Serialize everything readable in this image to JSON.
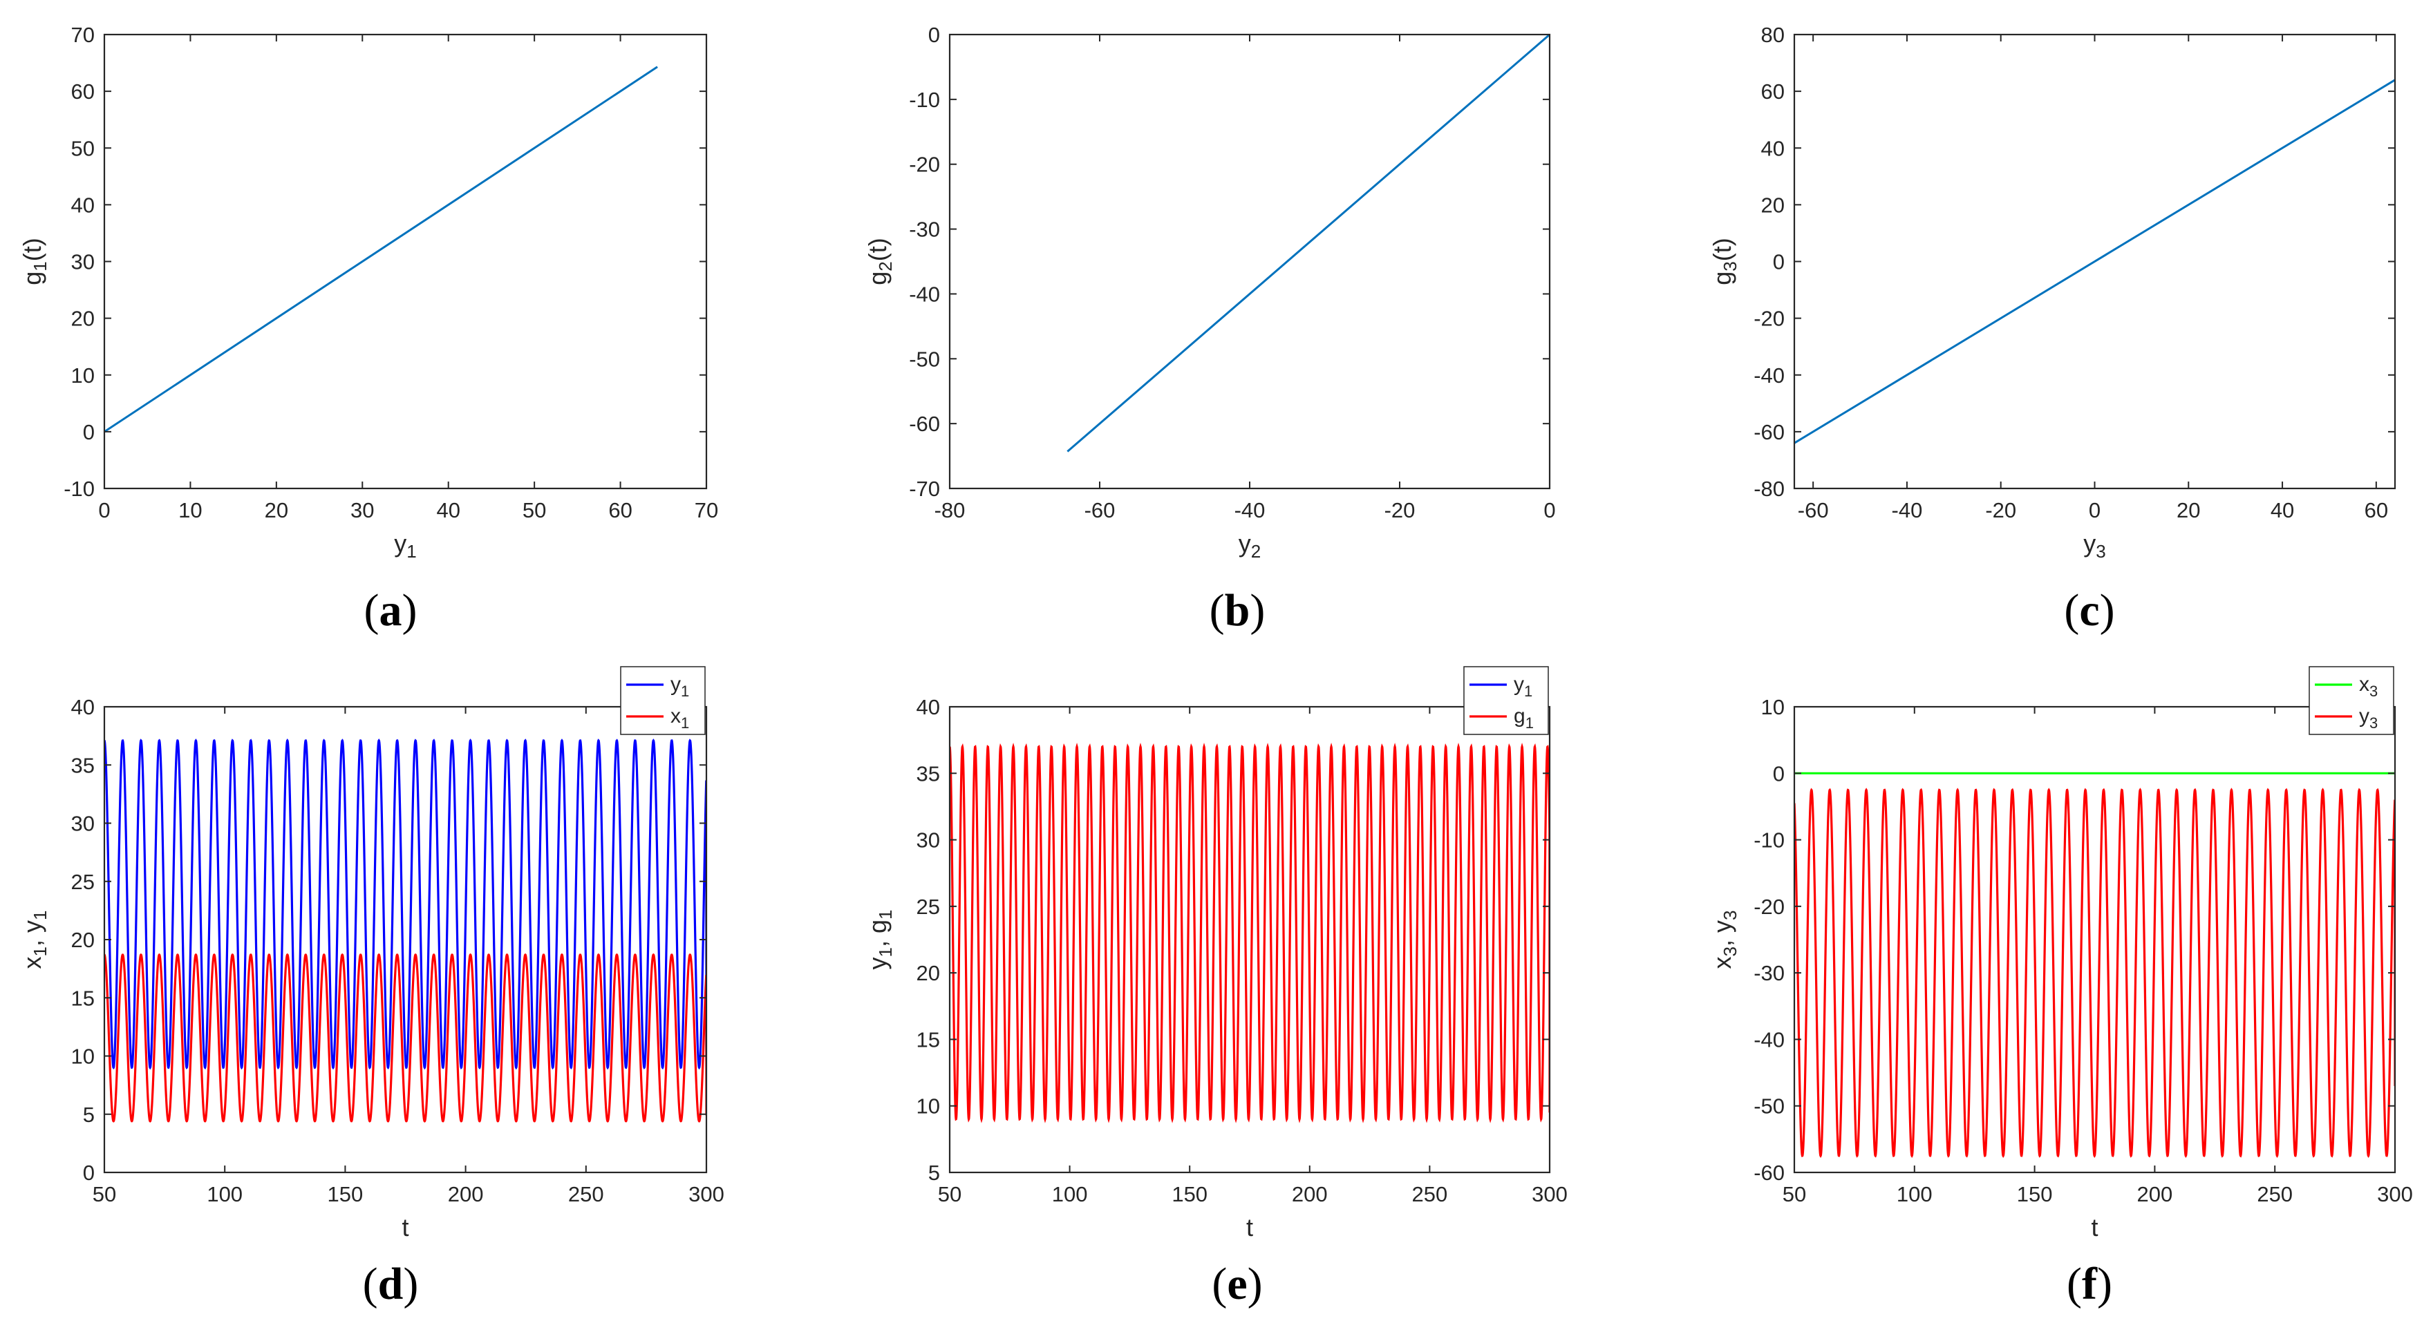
{
  "figure": {
    "background": "#ffffff"
  },
  "chart_data": [
    {
      "id": "a",
      "panel_label": "a",
      "type": "line",
      "xlabel": {
        "base": "y",
        "sub": "1",
        "rest": ""
      },
      "ylabel": {
        "base": "g",
        "sub": "1",
        "rest": "(t)"
      },
      "xlim": [
        0,
        70
      ],
      "ylim": [
        -10,
        70
      ],
      "xticks": [
        0,
        10,
        20,
        30,
        40,
        50,
        60,
        70
      ],
      "yticks": [
        -10,
        0,
        10,
        20,
        30,
        40,
        50,
        60,
        70
      ],
      "series": [
        {
          "name": "g1 vs y1",
          "color": "#0072BD",
          "points": [
            [
              0,
              0
            ],
            [
              64.3,
              64.3
            ]
          ]
        }
      ]
    },
    {
      "id": "b",
      "panel_label": "b",
      "type": "line",
      "xlabel": {
        "base": "y",
        "sub": "2",
        "rest": ""
      },
      "ylabel": {
        "base": "g",
        "sub": "2",
        "rest": "(t)"
      },
      "xlim": [
        -80,
        0
      ],
      "ylim": [
        -70,
        0
      ],
      "xticks": [
        -80,
        -60,
        -40,
        -20,
        0
      ],
      "yticks": [
        -70,
        -60,
        -50,
        -40,
        -30,
        -20,
        -10,
        0
      ],
      "series": [
        {
          "name": "g2 vs y2",
          "color": "#0072BD",
          "points": [
            [
              -64.3,
              -64.3
            ],
            [
              0,
              0
            ]
          ]
        }
      ]
    },
    {
      "id": "c",
      "panel_label": "c",
      "type": "line",
      "xlabel": {
        "base": "y",
        "sub": "3",
        "rest": ""
      },
      "ylabel": {
        "base": "g",
        "sub": "3",
        "rest": "(t)"
      },
      "xlim": [
        -64,
        64
      ],
      "ylim": [
        -80,
        80
      ],
      "xticks": [
        -60,
        -40,
        -20,
        0,
        20,
        40,
        60
      ],
      "yticks": [
        -80,
        -60,
        -40,
        -20,
        0,
        20,
        40,
        60,
        80
      ],
      "series": [
        {
          "name": "g3 vs y3",
          "color": "#0072BD",
          "points": [
            [
              -64,
              -64
            ],
            [
              64,
              64
            ]
          ]
        }
      ]
    },
    {
      "id": "d",
      "panel_label": "d",
      "type": "line",
      "xlabel": {
        "base": "t",
        "sub": "",
        "rest": ""
      },
      "ylabel": {
        "base": "x",
        "sub": "1",
        "rest": ", y",
        "sub2": "1"
      },
      "xlim": [
        50,
        300
      ],
      "ylim": [
        0,
        40
      ],
      "xticks": [
        50,
        100,
        150,
        200,
        250,
        300
      ],
      "yticks": [
        0,
        5,
        10,
        15,
        20,
        25,
        30,
        35,
        40
      ],
      "legend": [
        {
          "base": "y",
          "sub": "1",
          "color": "#0000FF"
        },
        {
          "base": "x",
          "sub": "1",
          "color": "#FF0000"
        }
      ],
      "series": [
        {
          "name": "y1",
          "color": "#0000FF",
          "osc": {
            "mean": 23.05,
            "amp": 14.05,
            "period": 7.6,
            "start": 38.0,
            "end": 9.6,
            "first_min": 9.0,
            "first_max": 37.7
          }
        },
        {
          "name": "x1",
          "color": "#FF0000",
          "osc": {
            "mean": 11.55,
            "amp": 7.15,
            "period": 7.6,
            "start": 19.0,
            "end": 4.9,
            "first_min": 4.3,
            "first_max": 18.8
          }
        }
      ]
    },
    {
      "id": "e",
      "panel_label": "e",
      "type": "line",
      "xlabel": {
        "base": "t",
        "sub": "",
        "rest": ""
      },
      "ylabel": {
        "base": "y",
        "sub": "1",
        "rest": ", g",
        "sub2": "1"
      },
      "xlim": [
        50,
        300
      ],
      "ylim": [
        5,
        40
      ],
      "xticks": [
        50,
        100,
        150,
        200,
        250,
        300
      ],
      "yticks": [
        5,
        10,
        15,
        20,
        25,
        30,
        35,
        40
      ],
      "legend": [
        {
          "base": "y",
          "sub": "1",
          "color": "#0000FF"
        },
        {
          "base": "g",
          "sub": "1",
          "color": "#FF0000"
        }
      ],
      "series": [
        {
          "name": "g1",
          "color": "#FF0000",
          "osc": {
            "mean": 23.0,
            "amp": 14.0,
            "period": 5.3,
            "start": 38.0,
            "end": 9.5,
            "first_min": 8.6,
            "first_max": 37.8
          }
        }
      ]
    },
    {
      "id": "f",
      "panel_label": "f",
      "type": "line",
      "xlabel": {
        "base": "t",
        "sub": "",
        "rest": ""
      },
      "ylabel": {
        "base": "x",
        "sub": "3",
        "rest": ", y",
        "sub2": "3"
      },
      "xlim": [
        50,
        300
      ],
      "ylim": [
        -60,
        10
      ],
      "xticks": [
        50,
        100,
        150,
        200,
        250,
        300
      ],
      "yticks": [
        -60,
        -50,
        -40,
        -30,
        -20,
        -10,
        0,
        10
      ],
      "legend": [
        {
          "base": "x",
          "sub": "3",
          "color": "#00FF00"
        },
        {
          "base": "y",
          "sub": "3",
          "color": "#FF0000"
        }
      ],
      "series": [
        {
          "name": "x3",
          "color": "#00FF00",
          "points": [
            [
              50,
              0
            ],
            [
              300,
              0
            ]
          ]
        },
        {
          "name": "y3",
          "color": "#FF0000",
          "osc": {
            "mean": -30.0,
            "amp": 27.5,
            "period": 7.6,
            "start": -4.5,
            "end": -47.0,
            "first_min": -57.5,
            "first_max": -1.8
          }
        }
      ]
    }
  ]
}
